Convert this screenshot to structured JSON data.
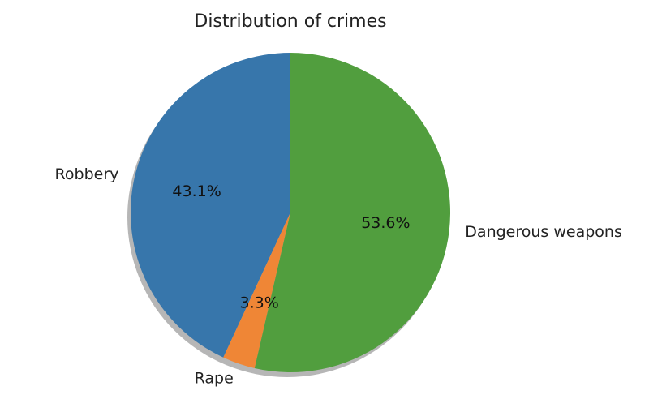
{
  "chart_data": {
    "type": "pie",
    "title": "Distribution of crimes",
    "start_angle": "top (12 o'clock), counter-clockwise",
    "shadow": true,
    "slices": [
      {
        "label": "Robbery",
        "value": 43.1,
        "pct_label": "43.1%",
        "color": "#3776ab"
      },
      {
        "label": "Rape",
        "value": 3.3,
        "pct_label": "3.3%",
        "color": "#ef8636"
      },
      {
        "label": "Dangerous weapons",
        "value": 53.6,
        "pct_label": "53.6%",
        "color": "#519e3e"
      }
    ]
  }
}
